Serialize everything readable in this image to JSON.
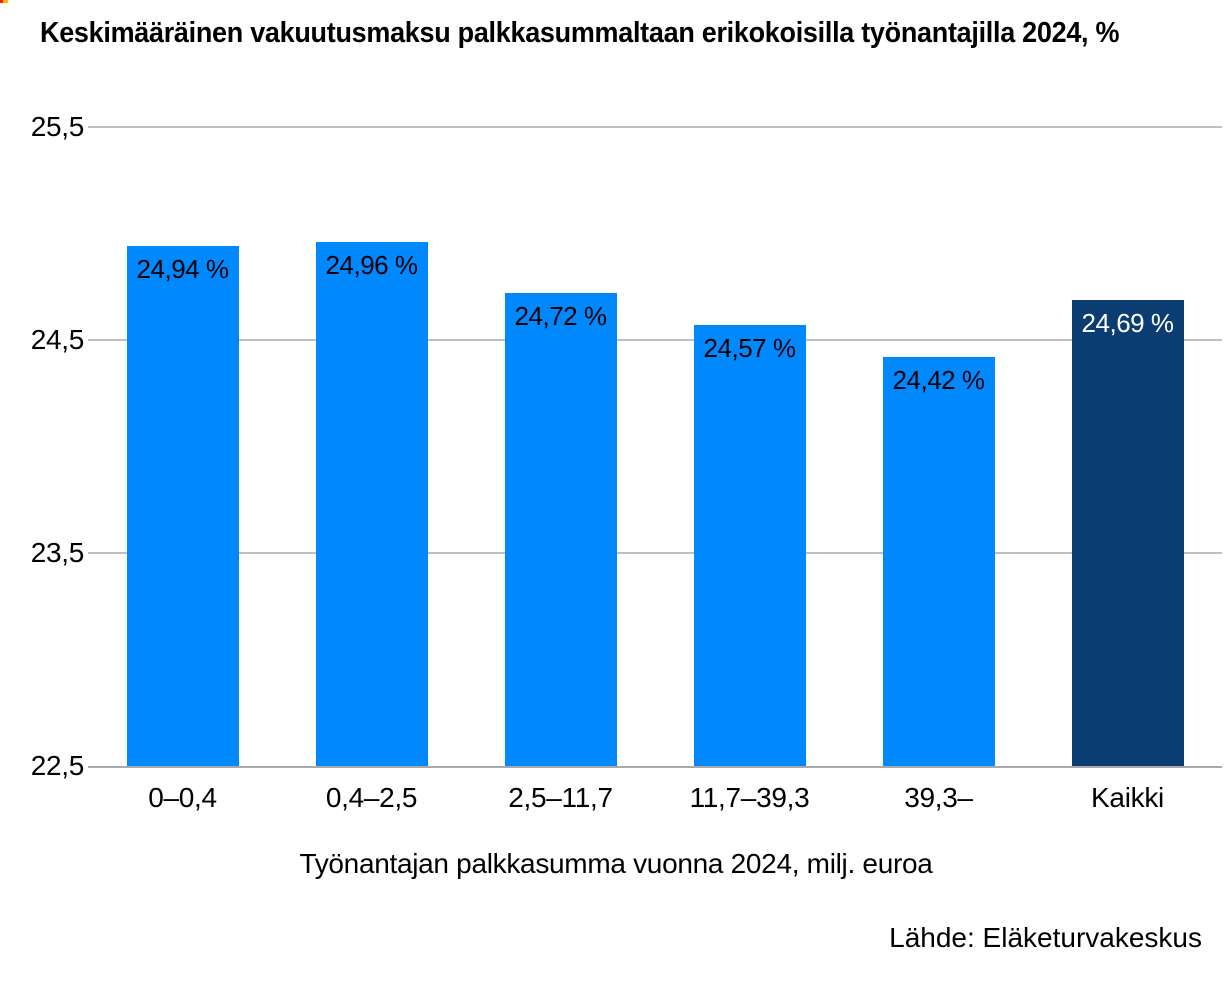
{
  "page": {
    "source": "Lähde: Eläketurvakeskus",
    "corner_mark_colors": [
      "#ff1a00",
      "#ffb800"
    ]
  },
  "chart_data": {
    "type": "bar",
    "title": "Keskimääräinen vakuutusmaksu palkkasummaltaan erikokoisilla työnantajilla 2024, %",
    "categories": [
      "0–0,4",
      "0,4–2,5",
      "2,5–11,7",
      "11,7–39,3",
      "39,3–",
      "Kaikki"
    ],
    "values": [
      24.94,
      24.96,
      24.72,
      24.57,
      24.42,
      24.69
    ],
    "labels": [
      "24,94 %",
      "24,96 %",
      "24,72 %",
      "24,57 %",
      "24,42 %",
      "24,69 %"
    ],
    "highlight_index": 5,
    "xlabel": "Työnantajan palkkasumma vuonna 2024, milj. euroa",
    "ylabel": "",
    "ylim": [
      22.5,
      25.5
    ],
    "yticks": [
      "25,5",
      "24,5",
      "23,5",
      "22,5"
    ],
    "ytick_values": [
      25.5,
      24.5,
      23.5,
      22.5
    ],
    "grid": true,
    "legend": "none",
    "bar_color": "#0088ff",
    "highlight_color": "#0b3c72",
    "label_color": "#000000",
    "highlight_label_color": "#ffffff",
    "gridline_color": "#bfbfbf",
    "baseline_color": "#a9a9a9"
  }
}
